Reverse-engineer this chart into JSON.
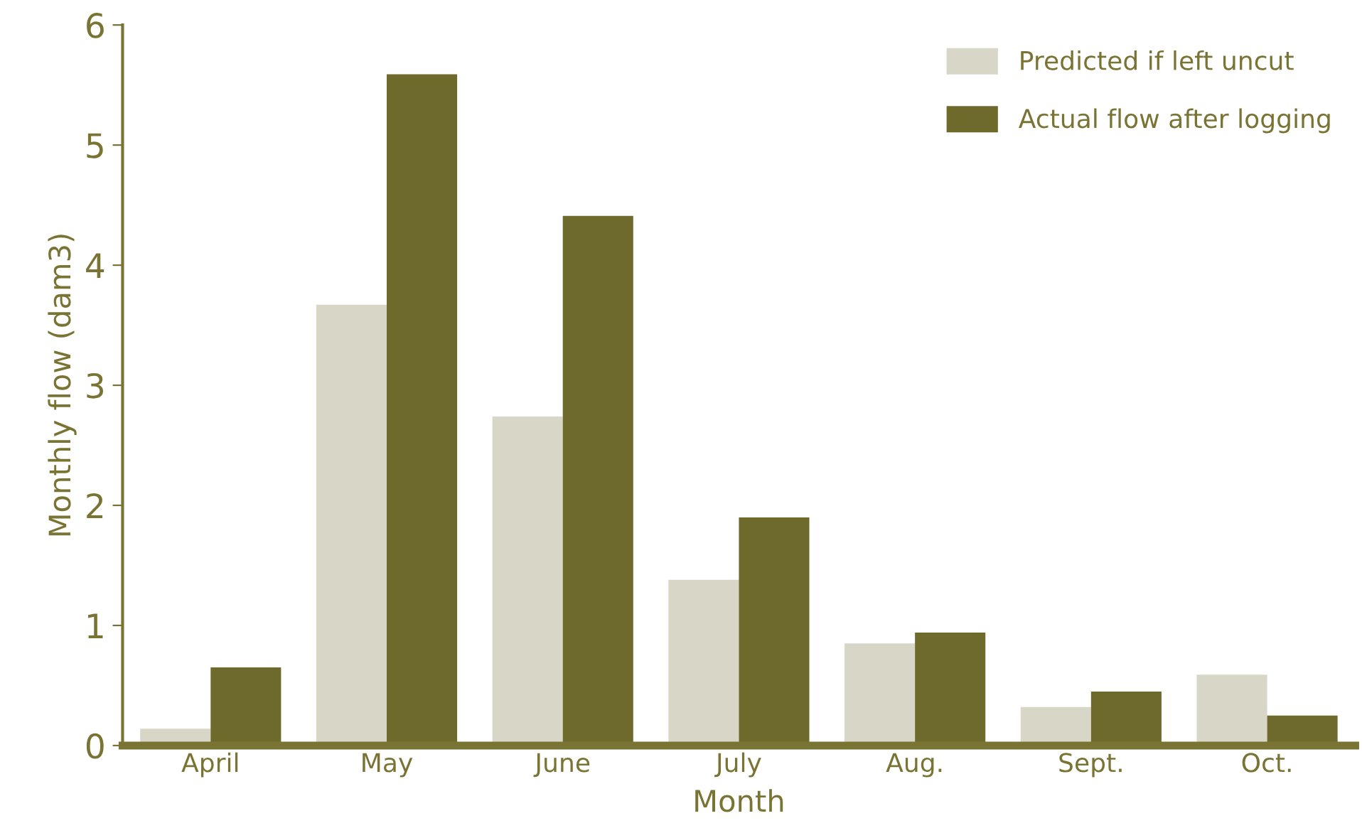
{
  "chart_data": {
    "type": "bar",
    "xlabel": "Month",
    "ylabel": "Monthly flow (dam3)",
    "categories": [
      "April",
      "May",
      "June",
      "July",
      "Aug.",
      "Sept.",
      "Oct."
    ],
    "series": [
      {
        "name": "Predicted if left uncut",
        "color": "#d8d6c6",
        "values": [
          0.14,
          3.67,
          2.74,
          1.38,
          0.85,
          0.32,
          0.59
        ]
      },
      {
        "name": "Actual flow after logging",
        "color": "#6e6a2c",
        "values": [
          0.65,
          5.59,
          4.41,
          1.9,
          0.94,
          0.45,
          0.25
        ]
      }
    ],
    "ylim": [
      0,
      6
    ],
    "yticks": [
      0,
      1,
      2,
      3,
      4,
      5,
      6
    ],
    "grid": false,
    "legend": "top right"
  }
}
